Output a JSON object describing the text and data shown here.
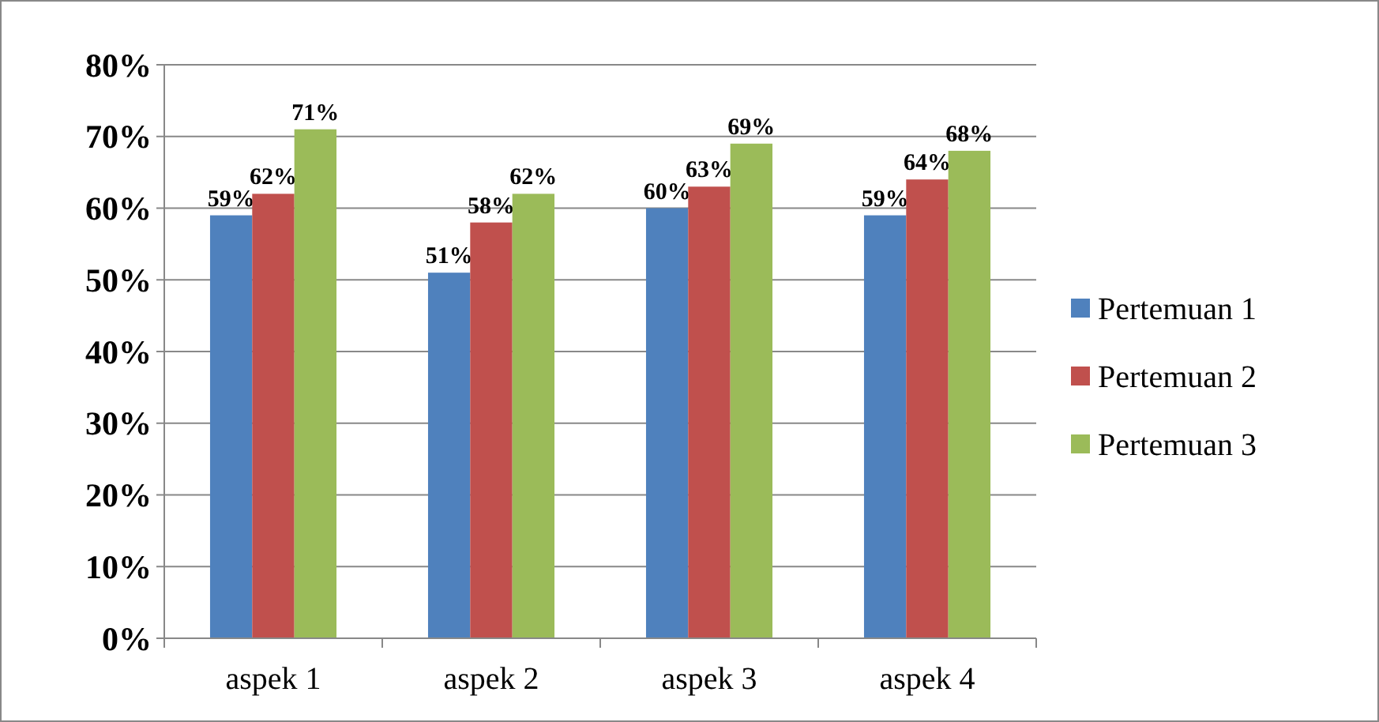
{
  "chart_data": {
    "type": "bar",
    "categories": [
      "aspek 1",
      "aspek 2",
      "aspek 3",
      "aspek 4"
    ],
    "series": [
      {
        "name": "Pertemuan 1",
        "color": "#4f81bd",
        "values": [
          59,
          51,
          60,
          59
        ],
        "value_labels": [
          "59%",
          "51%",
          "60%",
          "59%"
        ]
      },
      {
        "name": "Pertemuan 2",
        "color": "#c0504d",
        "values": [
          62,
          58,
          63,
          64
        ],
        "value_labels": [
          "62%",
          "58%",
          "63%",
          "64%"
        ]
      },
      {
        "name": "Pertemuan 3",
        "color": "#9bbb59",
        "values": [
          71,
          62,
          69,
          68
        ],
        "value_labels": [
          "71%",
          "62%",
          "69%",
          "68%"
        ]
      }
    ],
    "ylim": [
      0,
      80
    ],
    "yticks": [
      {
        "value": 0,
        "label": "0%"
      },
      {
        "value": 10,
        "label": "10%"
      },
      {
        "value": 20,
        "label": "20%"
      },
      {
        "value": 30,
        "label": "30%"
      },
      {
        "value": 40,
        "label": "40%"
      },
      {
        "value": 50,
        "label": "50%"
      },
      {
        "value": 60,
        "label": "60%"
      },
      {
        "value": 70,
        "label": "70%"
      },
      {
        "value": 80,
        "label": "80%"
      }
    ],
    "grid": "y",
    "legend": "right"
  }
}
